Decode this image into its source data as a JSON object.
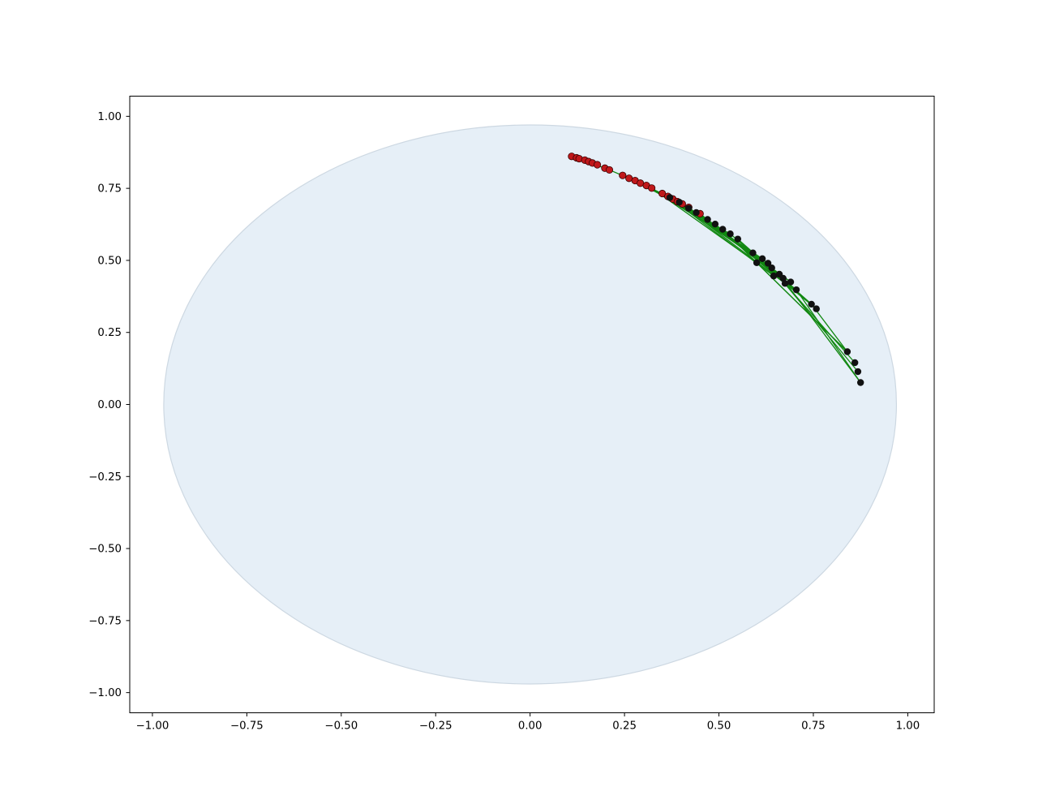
{
  "chart_data": {
    "type": "scatter",
    "title": "",
    "xlabel": "",
    "ylabel": "",
    "xlim": [
      -1.06,
      1.07
    ],
    "ylim": [
      -1.07,
      1.07
    ],
    "grid": false,
    "xticks": [
      -1.0,
      -0.75,
      -0.5,
      -0.25,
      0.0,
      0.25,
      0.5,
      0.75,
      1.0
    ],
    "xtick_labels": [
      "−1.00",
      "−0.75",
      "−0.50",
      "−0.25",
      "0.00",
      "0.25",
      "0.50",
      "0.75",
      "1.00"
    ],
    "yticks": [
      1.0,
      0.75,
      0.5,
      0.25,
      0.0,
      -0.25,
      -0.5,
      -0.75,
      -1.0
    ],
    "ytick_labels": [
      "1.00",
      "0.75",
      "0.50",
      "0.25",
      "0.00",
      "−0.25",
      "−0.50",
      "−0.75",
      "−1.00"
    ],
    "disk": {
      "center": [
        0.0,
        0.0
      ],
      "radius": 0.97,
      "fill": "#e6eff7",
      "edge": "#cdd8e2"
    },
    "colors": {
      "origin_points": "#c0181b",
      "target_points": "#111111",
      "edges": "#118811"
    },
    "origin_points": [
      [
        0.11,
        0.861
      ],
      [
        0.123,
        0.856
      ],
      [
        0.13,
        0.853
      ],
      [
        0.145,
        0.848
      ],
      [
        0.155,
        0.843
      ],
      [
        0.165,
        0.838
      ],
      [
        0.178,
        0.832
      ],
      [
        0.198,
        0.82
      ],
      [
        0.21,
        0.814
      ],
      [
        0.245,
        0.795
      ],
      [
        0.262,
        0.785
      ],
      [
        0.278,
        0.777
      ],
      [
        0.292,
        0.768
      ],
      [
        0.308,
        0.76
      ],
      [
        0.322,
        0.751
      ],
      [
        0.35,
        0.732
      ],
      [
        0.365,
        0.722
      ],
      [
        0.378,
        0.713
      ],
      [
        0.39,
        0.704
      ],
      [
        0.403,
        0.696
      ],
      [
        0.42,
        0.684
      ],
      [
        0.45,
        0.662
      ]
    ],
    "target_points": [
      [
        0.37,
        0.718
      ],
      [
        0.395,
        0.702
      ],
      [
        0.42,
        0.681
      ],
      [
        0.44,
        0.666
      ],
      [
        0.47,
        0.642
      ],
      [
        0.49,
        0.626
      ],
      [
        0.51,
        0.608
      ],
      [
        0.53,
        0.592
      ],
      [
        0.55,
        0.574
      ],
      [
        0.59,
        0.526
      ],
      [
        0.6,
        0.492
      ],
      [
        0.615,
        0.506
      ],
      [
        0.63,
        0.49
      ],
      [
        0.64,
        0.474
      ],
      [
        0.645,
        0.446
      ],
      [
        0.66,
        0.452
      ],
      [
        0.67,
        0.438
      ],
      [
        0.675,
        0.42
      ],
      [
        0.69,
        0.425
      ],
      [
        0.705,
        0.398
      ],
      [
        0.745,
        0.348
      ],
      [
        0.758,
        0.332
      ],
      [
        0.84,
        0.183
      ],
      [
        0.86,
        0.145
      ],
      [
        0.868,
        0.114
      ],
      [
        0.875,
        0.076
      ]
    ],
    "edges": [
      [
        [
          0.11,
          0.861
        ],
        [
          0.15,
          0.843
        ]
      ],
      [
        [
          0.15,
          0.843
        ],
        [
          0.21,
          0.814
        ]
      ],
      [
        [
          0.21,
          0.814
        ],
        [
          0.3,
          0.764
        ]
      ],
      [
        [
          0.3,
          0.764
        ],
        [
          0.37,
          0.718
        ]
      ],
      [
        [
          0.245,
          0.795
        ],
        [
          0.42,
          0.681
        ]
      ],
      [
        [
          0.278,
          0.777
        ],
        [
          0.47,
          0.642
        ]
      ],
      [
        [
          0.292,
          0.768
        ],
        [
          0.53,
          0.592
        ]
      ],
      [
        [
          0.308,
          0.76
        ],
        [
          0.59,
          0.526
        ]
      ],
      [
        [
          0.322,
          0.751
        ],
        [
          0.6,
          0.492
        ]
      ],
      [
        [
          0.35,
          0.732
        ],
        [
          0.615,
          0.506
        ]
      ],
      [
        [
          0.35,
          0.732
        ],
        [
          0.64,
          0.474
        ]
      ],
      [
        [
          0.365,
          0.722
        ],
        [
          0.645,
          0.446
        ]
      ],
      [
        [
          0.378,
          0.713
        ],
        [
          0.66,
          0.452
        ]
      ],
      [
        [
          0.39,
          0.704
        ],
        [
          0.675,
          0.42
        ]
      ],
      [
        [
          0.403,
          0.696
        ],
        [
          0.69,
          0.425
        ]
      ],
      [
        [
          0.42,
          0.684
        ],
        [
          0.705,
          0.398
        ]
      ],
      [
        [
          0.45,
          0.662
        ],
        [
          0.745,
          0.348
        ]
      ],
      [
        [
          0.45,
          0.662
        ],
        [
          0.758,
          0.332
        ]
      ],
      [
        [
          0.49,
          0.626
        ],
        [
          0.758,
          0.332
        ]
      ],
      [
        [
          0.55,
          0.574
        ],
        [
          0.745,
          0.348
        ]
      ],
      [
        [
          0.6,
          0.492
        ],
        [
          0.84,
          0.183
        ]
      ],
      [
        [
          0.62,
          0.5
        ],
        [
          0.86,
          0.145
        ]
      ],
      [
        [
          0.64,
          0.474
        ],
        [
          0.868,
          0.114
        ]
      ],
      [
        [
          0.66,
          0.452
        ],
        [
          0.875,
          0.076
        ]
      ],
      [
        [
          0.705,
          0.398
        ],
        [
          0.875,
          0.076
        ]
      ],
      [
        [
          0.745,
          0.348
        ],
        [
          0.84,
          0.183
        ]
      ],
      [
        [
          0.51,
          0.608
        ],
        [
          0.84,
          0.183
        ]
      ],
      [
        [
          0.44,
          0.666
        ],
        [
          0.69,
          0.425
        ]
      ],
      [
        [
          0.395,
          0.702
        ],
        [
          0.63,
          0.49
        ]
      ],
      [
        [
          0.47,
          0.642
        ],
        [
          0.705,
          0.398
        ]
      ],
      [
        [
          0.53,
          0.592
        ],
        [
          0.745,
          0.348
        ]
      ],
      [
        [
          0.57,
          0.55
        ],
        [
          0.758,
          0.332
        ]
      ]
    ]
  }
}
